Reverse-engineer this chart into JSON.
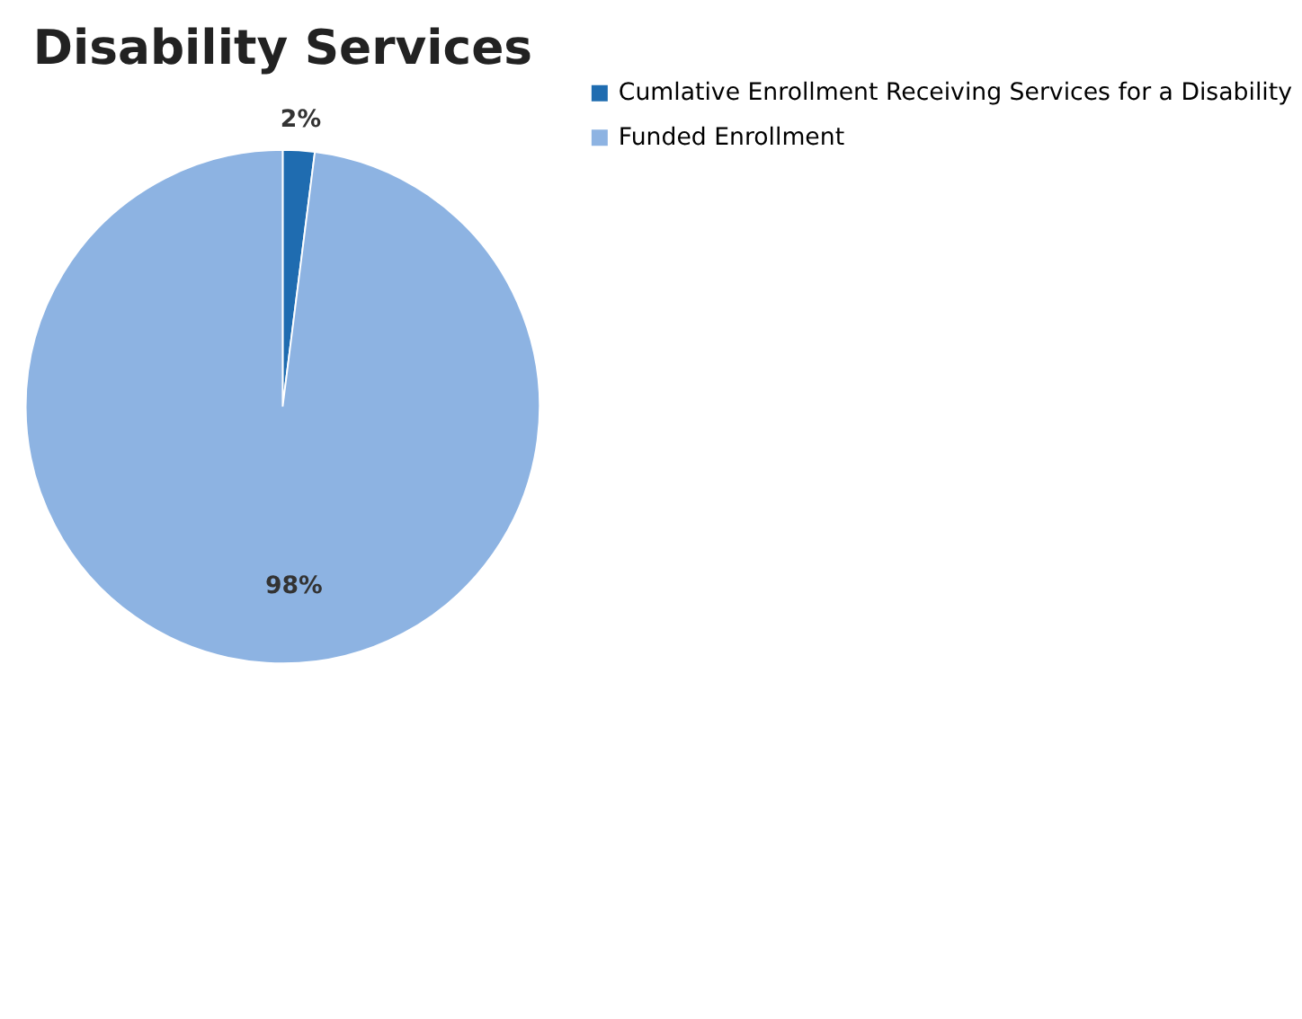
{
  "chart_data": {
    "type": "pie",
    "title": "Disability Services",
    "categories": [
      "Cumlative Enrollment Receiving Services for a Disability",
      "Funded Enrollment"
    ],
    "values": [
      2,
      98
    ],
    "colors": [
      "#1f6cb0",
      "#8db3e2"
    ],
    "value_labels": [
      "2%",
      "98%"
    ],
    "legend": "right"
  }
}
